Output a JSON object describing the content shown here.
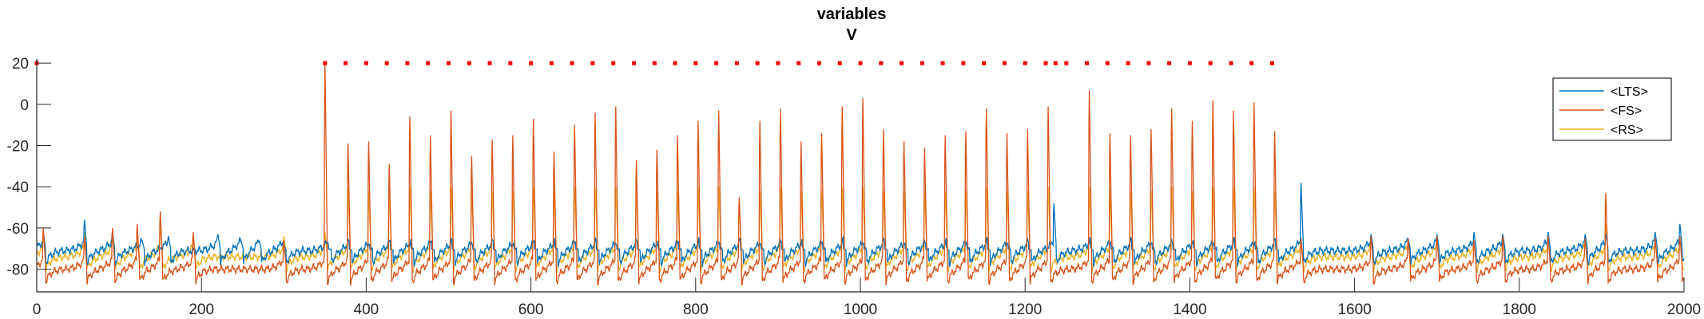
{
  "chart_data": {
    "type": "line",
    "title": "variables",
    "subtitle": "V",
    "xlabel": "",
    "ylabel": "",
    "xlim": [
      0,
      2000
    ],
    "ylim": [
      -91,
      22
    ],
    "x_ticks": [
      0,
      200,
      400,
      600,
      800,
      1000,
      1200,
      1400,
      1600,
      1800,
      2000
    ],
    "y_ticks": [
      20,
      0,
      -20,
      -40,
      -60,
      -80
    ],
    "x_tick_labels": [
      "0",
      "200",
      "400",
      "600",
      "800",
      "1000",
      "1200",
      "1400",
      "1600",
      "1800",
      "2000"
    ],
    "y_tick_labels": [
      "20",
      "0",
      "-20",
      "-40",
      "-60",
      "-80"
    ],
    "grid": false,
    "legend_position": "top-right",
    "series": [
      {
        "name": "<LTS>",
        "color": "#0072BD",
        "baseline": -71,
        "spike_times": [
          8,
          58,
          92,
          128,
          160,
          220,
          248,
          270,
          300,
          355,
          380,
          405,
          430,
          455,
          480,
          505,
          530,
          555,
          580,
          605,
          630,
          655,
          680,
          705,
          730,
          755,
          780,
          805,
          830,
          855,
          880,
          905,
          930,
          955,
          980,
          1005,
          1030,
          1055,
          1080,
          1105,
          1130,
          1155,
          1180,
          1205,
          1235,
          1280,
          1305,
          1330,
          1355,
          1380,
          1405,
          1430,
          1455,
          1480,
          1505,
          1535,
          1620,
          1665,
          1700,
          1745,
          1780,
          1835,
          1880,
          1905,
          1965,
          1995
        ],
        "spike_peaks": [
          -62,
          -56,
          -62,
          -66,
          -64,
          -63,
          -66,
          -66,
          -68,
          -70,
          -70,
          -70,
          -70,
          -70,
          -70,
          -70,
          -70,
          -70,
          -70,
          -70,
          -70,
          -70,
          -70,
          -70,
          -70,
          -70,
          -70,
          -70,
          -70,
          -70,
          -70,
          -70,
          -70,
          -70,
          -70,
          -70,
          -70,
          -70,
          -70,
          -70,
          -70,
          -70,
          -70,
          -70,
          -48,
          -70,
          -70,
          -70,
          -70,
          -70,
          -70,
          -70,
          -70,
          -70,
          -70,
          -38,
          -63,
          -65,
          -63,
          -62,
          -63,
          -62,
          -63,
          -63,
          -62,
          -58
        ]
      },
      {
        "name": "<FS>",
        "color": "#D95319",
        "baseline": -80,
        "spike_times": [
          8,
          58,
          92,
          122,
          150,
          190,
          300,
          350,
          378,
          403,
          428,
          453,
          478,
          503,
          528,
          553,
          578,
          603,
          628,
          653,
          678,
          703,
          728,
          753,
          778,
          803,
          828,
          853,
          878,
          903,
          928,
          953,
          978,
          1003,
          1028,
          1053,
          1078,
          1103,
          1128,
          1153,
          1178,
          1203,
          1228,
          1278,
          1303,
          1328,
          1353,
          1378,
          1403,
          1428,
          1453,
          1478,
          1503,
          1535,
          1620,
          1665,
          1700,
          1745,
          1780,
          1835,
          1880,
          1905,
          1965,
          1995
        ],
        "spike_peaks": [
          -60,
          -65,
          -60,
          -58,
          -52,
          -62,
          -66,
          20,
          -19,
          -18,
          -29,
          -6,
          -15,
          -3,
          -25,
          -17,
          -15,
          -7,
          -23,
          -10,
          -4,
          -1,
          -27,
          -22,
          -15,
          -8,
          -3,
          -45,
          -8,
          -2,
          -18,
          -14,
          -1,
          3,
          -12,
          -18,
          -21,
          -15,
          -13,
          -2,
          -14,
          -12,
          -1,
          7,
          -14,
          -15,
          -12,
          -2,
          -8,
          2,
          -3,
          1,
          -13,
          -65,
          -64,
          -65,
          -64,
          -66,
          -64,
          -64,
          -65,
          -43,
          -65,
          -64
        ]
      },
      {
        "name": "<RS>",
        "color": "#EDB120",
        "baseline": -74,
        "spike_times": [
          8,
          58,
          92,
          122,
          150,
          190,
          300,
          350,
          378,
          403,
          428,
          453,
          478,
          503,
          528,
          553,
          578,
          603,
          628,
          653,
          678,
          703,
          728,
          753,
          778,
          803,
          828,
          853,
          878,
          903,
          928,
          953,
          978,
          1003,
          1028,
          1053,
          1078,
          1103,
          1128,
          1153,
          1178,
          1203,
          1228,
          1278,
          1303,
          1328,
          1353,
          1378,
          1403,
          1428,
          1453,
          1478,
          1503,
          1535,
          1620,
          1665,
          1700,
          1745,
          1780,
          1835,
          1880,
          1905,
          1965,
          1995
        ],
        "spike_peaks": [
          -64,
          -62,
          -64,
          -64,
          -60,
          -63,
          -64,
          -62,
          -40,
          -42,
          -42,
          -40,
          -42,
          -40,
          -42,
          -42,
          -42,
          -40,
          -42,
          -40,
          -40,
          -40,
          -42,
          -42,
          -42,
          -40,
          -40,
          -50,
          -42,
          -40,
          -42,
          -42,
          -40,
          -40,
          -42,
          -42,
          -42,
          -42,
          -42,
          -40,
          -42,
          -42,
          -40,
          -40,
          -42,
          -42,
          -42,
          -40,
          -42,
          -40,
          -40,
          -40,
          -42,
          -68,
          -66,
          -67,
          -66,
          -67,
          -66,
          -66,
          -67,
          -58,
          -67,
          -66
        ]
      }
    ],
    "markers": {
      "color": "#FF0000",
      "y": 20,
      "x": [
        0,
        350,
        375,
        400,
        425,
        450,
        475,
        500,
        525,
        550,
        575,
        600,
        625,
        650,
        675,
        700,
        725,
        750,
        775,
        800,
        825,
        850,
        875,
        900,
        925,
        950,
        975,
        1000,
        1025,
        1050,
        1075,
        1100,
        1125,
        1150,
        1175,
        1200,
        1225,
        1237,
        1250,
        1275,
        1300,
        1325,
        1350,
        1375,
        1400,
        1425,
        1450,
        1475,
        1500
      ]
    }
  }
}
